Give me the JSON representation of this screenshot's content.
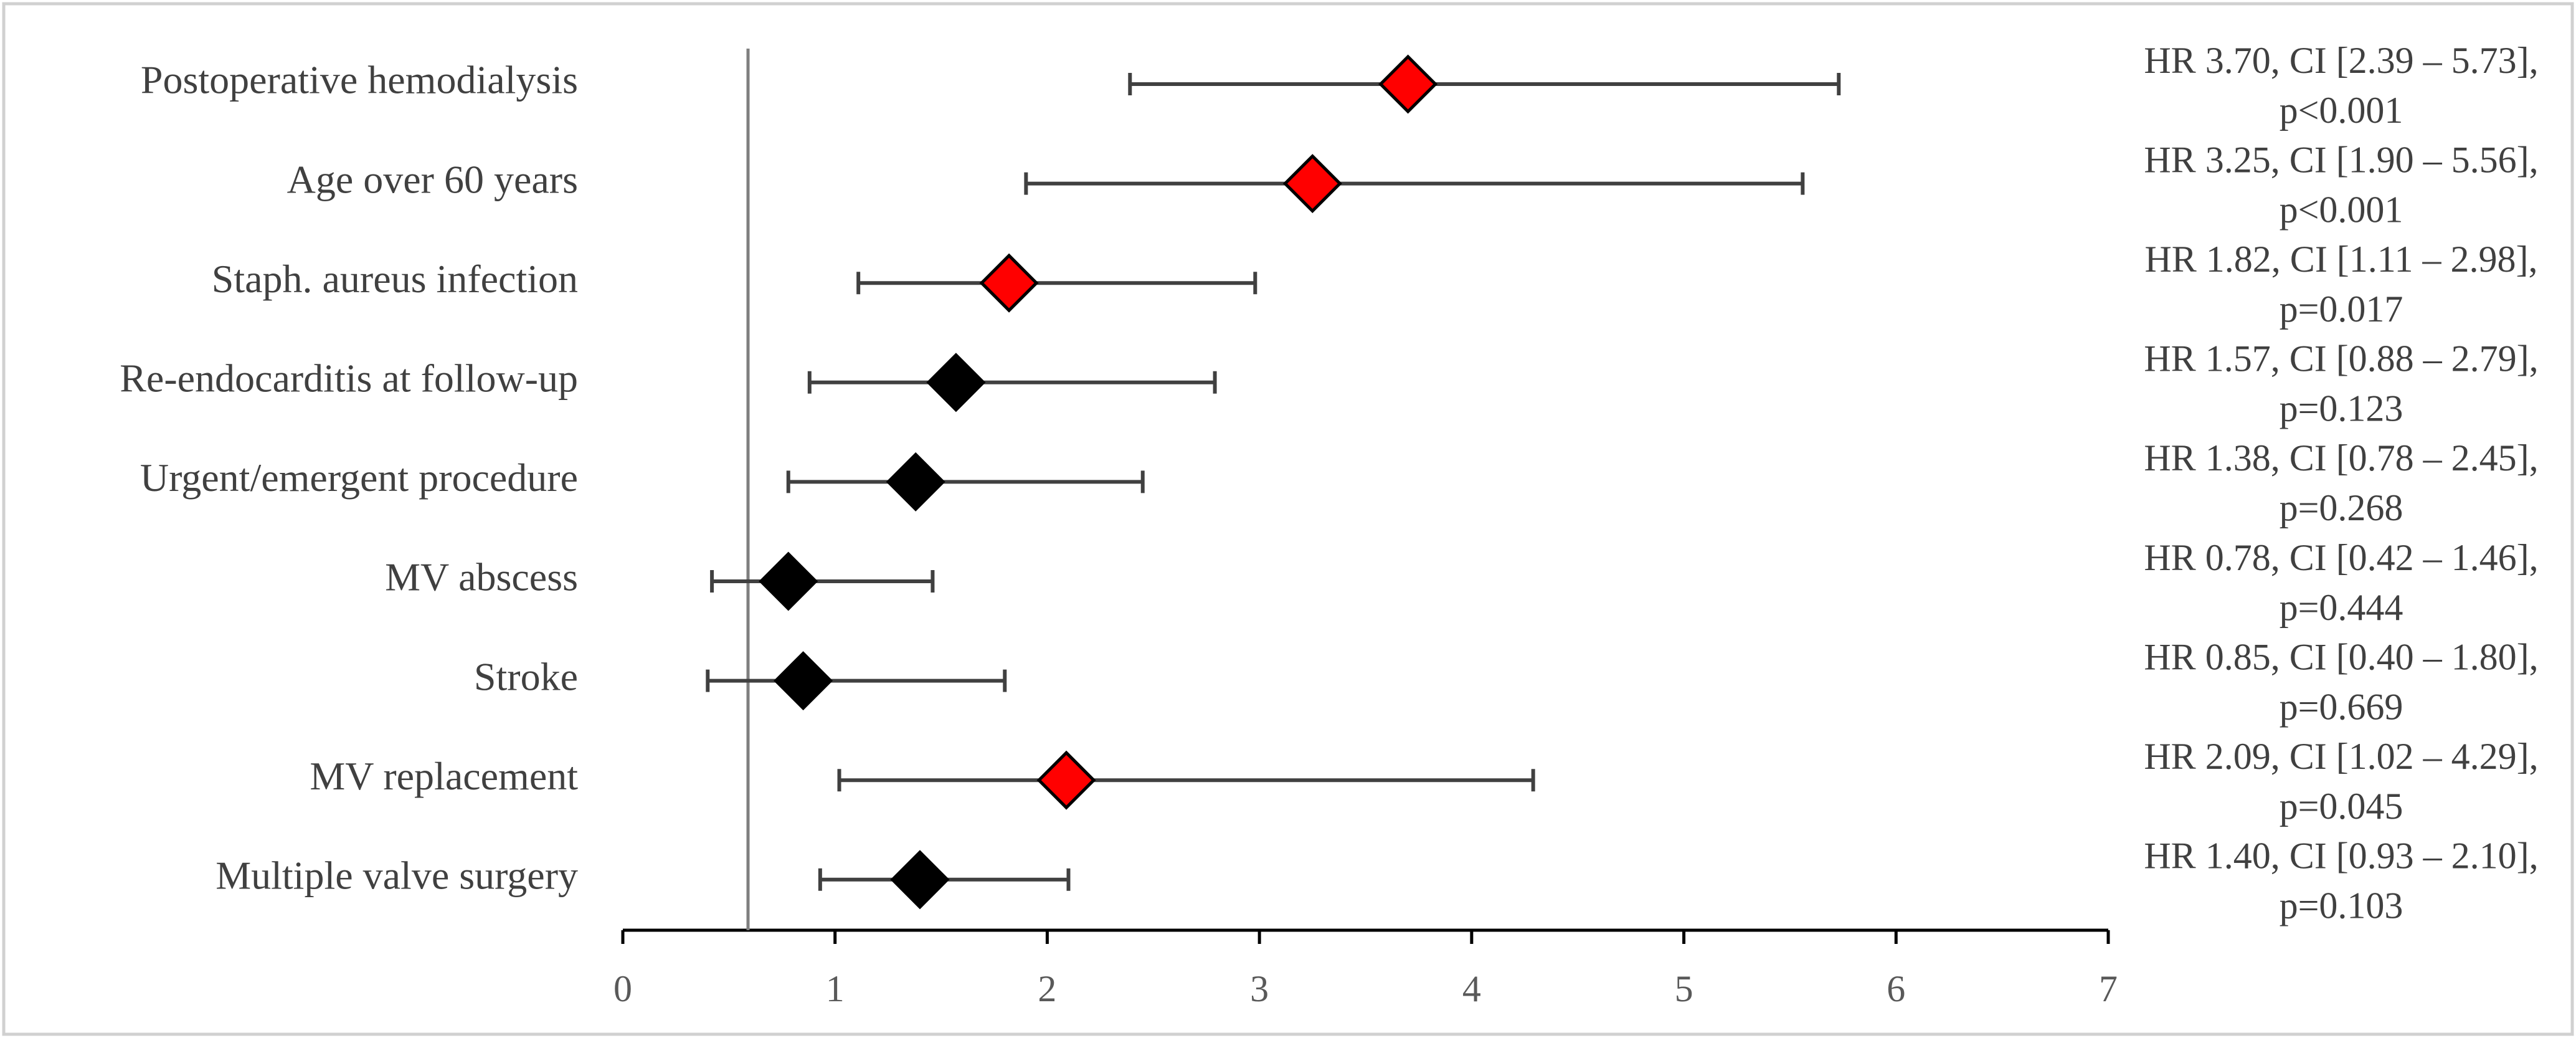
{
  "chart_data": {
    "type": "forest",
    "categories": [
      "Postoperative hemodialysis",
      "Age over 60 years",
      "Staph. aureus infection",
      "Re-endocarditis at follow-up",
      "Urgent/emergent procedure",
      "MV abscess",
      "Stroke",
      "MV replacement",
      "Multiple valve surgery"
    ],
    "values": [
      3.7,
      3.25,
      1.82,
      1.57,
      1.38,
      0.78,
      0.85,
      2.09,
      1.4
    ],
    "ci_low": [
      2.39,
      1.9,
      1.11,
      0.88,
      0.78,
      0.42,
      0.4,
      1.02,
      0.93
    ],
    "ci_high": [
      5.73,
      5.56,
      2.98,
      2.79,
      2.45,
      1.46,
      1.8,
      4.29,
      2.1
    ],
    "colors": [
      "#ff0000",
      "#ff0000",
      "#ff0000",
      "#000000",
      "#000000",
      "#000000",
      "#000000",
      "#ff0000",
      "#000000"
    ],
    "annotations": [
      [
        "HR 3.70, CI [2.39 – 5.73],",
        "p<0.001"
      ],
      [
        "HR 3.25, CI [1.90 – 5.56],",
        "p<0.001"
      ],
      [
        "HR 1.82, CI [1.11 – 2.98],",
        "p=0.017"
      ],
      [
        "HR 1.57, CI [0.88 – 2.79],",
        "p=0.123"
      ],
      [
        "HR 1.38, CI [0.78 – 2.45],",
        "p=0.268"
      ],
      [
        "HR 0.78, CI [0.42 – 1.46],",
        "p=0.444"
      ],
      [
        "HR 0.85, CI [0.40 – 1.80],",
        "p=0.669"
      ],
      [
        "HR 2.09, CI [1.02 – 4.29],",
        "p=0.045"
      ],
      [
        "HR 1.40, CI [0.93 – 2.10],",
        "p=0.103"
      ]
    ],
    "reference_x": 0.59,
    "xlim": [
      0,
      7
    ],
    "xticks": [
      0,
      1,
      2,
      3,
      4,
      5,
      6,
      7
    ]
  }
}
